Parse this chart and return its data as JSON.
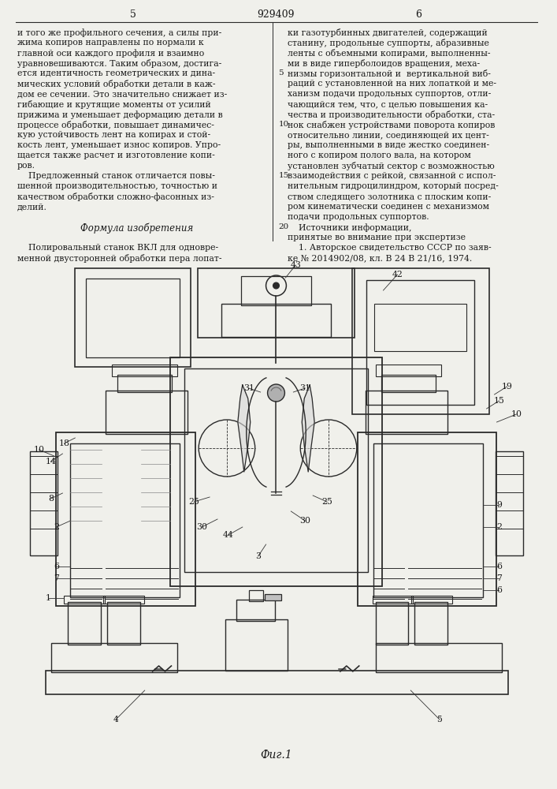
{
  "page_number_left": "5",
  "page_number_right": "6",
  "patent_number": "929409",
  "col_left_text": "и того же профильного сечения, а силы при-\nжима копиров направлены по нормали к\nглавной оси каждого профиля и взаимно\nуравновешиваются. Таким образом, достига-\nется идентичность геометрических и дина-\nмических условий обработки детали в каж-\nдом ее сечении. Это значительно снижает из-\nгибающие и крутящие моменты от усилий\nприжима и уменьшает деформацию детали в\nпроцессе обработки, повышает динамичес-\nкую устойчивость лент на копирах и стой-\nкость лент, уменьшает износ копиров. Упро-\nщается также расчет и изготовление копи-\nров.\n    Предложенный станок отличается повы-\nшенной производительностью, точностью и\nкачеством обработки сложно-фасонных из-\nделий.\n\nФормула изобретения\n\n    Полировальный станок ВКЛ для одновре-\nменной двусторонней обработки пера лопат-",
  "col_right_text": "ки газотурбинных двигателей, содержащий\nстанину, продольные суппорты, абразивные\nленты с объемными копирами, выполненны-\nми в виде гиперболоидов вращения, меха-\nнизмы горизонтальной и  вертикальной виб-\nраций с установленной на них лопаткой и ме-\nханизм подачи продольных суппортов, отли-\nчающийся тем, что, с целью повышения ка-\nчества и производительности обработки, ста-\nнок снабжен устройствами поворота копиров\nотносительно линии, соединяющей их цент-\nры, выполненными в виде жестко соединен-\nного с копиром полого вала, на котором\nустановлен зубчатый сектор с возможностью\nвзаимодействия с рейкой, связанной с испол-\nнительным гидроцилиндром, который посред-\nством следящего золотника с плоским копи-\nром кинематически соединен с механизмом\nподачи продольных суппортов.\n    Источники информации,\nпринятые во внимание при экспертизе\n    1. Авторское свидетельство СССР по заяв-\nке № 2014902/08, кл. В 24 В 21/16, 1974.",
  "fig_caption": "Фиг.1",
  "bg_color": "#f0f0eb",
  "text_color": "#1a1a1a",
  "line_color": "#2a2a2a"
}
